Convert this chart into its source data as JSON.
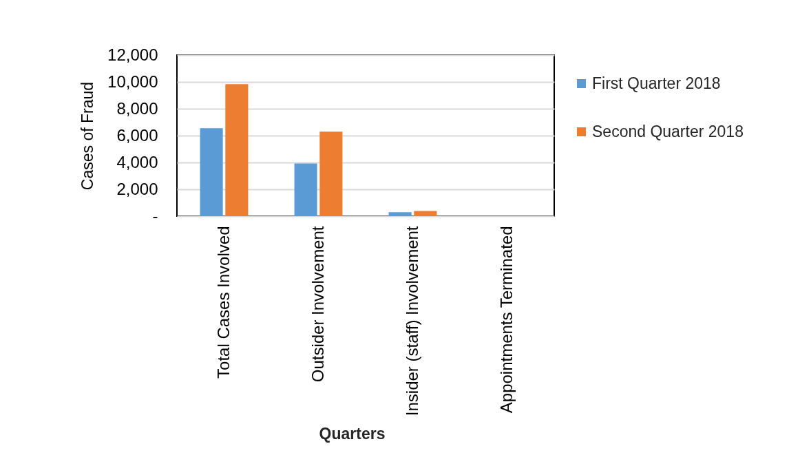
{
  "chart_data": {
    "type": "bar",
    "xlabel": "Quarters",
    "ylabel": "Cases of Fraud",
    "categories": [
      "Total Cases Involved",
      "Outsider Involvement",
      "Insider (staff) Involvement",
      "Appointments Terminated"
    ],
    "series": [
      {
        "name": "First Quarter 2018",
        "color": "#5b9bd5",
        "values": [
          6550,
          3920,
          300,
          null
        ]
      },
      {
        "name": "Second Quarter 2018",
        "color": "#ed7d31",
        "values": [
          9830,
          6290,
          380,
          null
        ]
      }
    ],
    "ylim": [
      0,
      12000
    ],
    "yticks": [
      {
        "value": 0,
        "label": "-"
      },
      {
        "value": 2000,
        "label": "2,000"
      },
      {
        "value": 4000,
        "label": "4,000"
      },
      {
        "value": 6000,
        "label": "6,000"
      },
      {
        "value": 8000,
        "label": "8,000"
      },
      {
        "value": 10000,
        "label": "10,000"
      },
      {
        "value": 12000,
        "label": "12,000"
      }
    ],
    "grid": "y",
    "legend": "right"
  }
}
